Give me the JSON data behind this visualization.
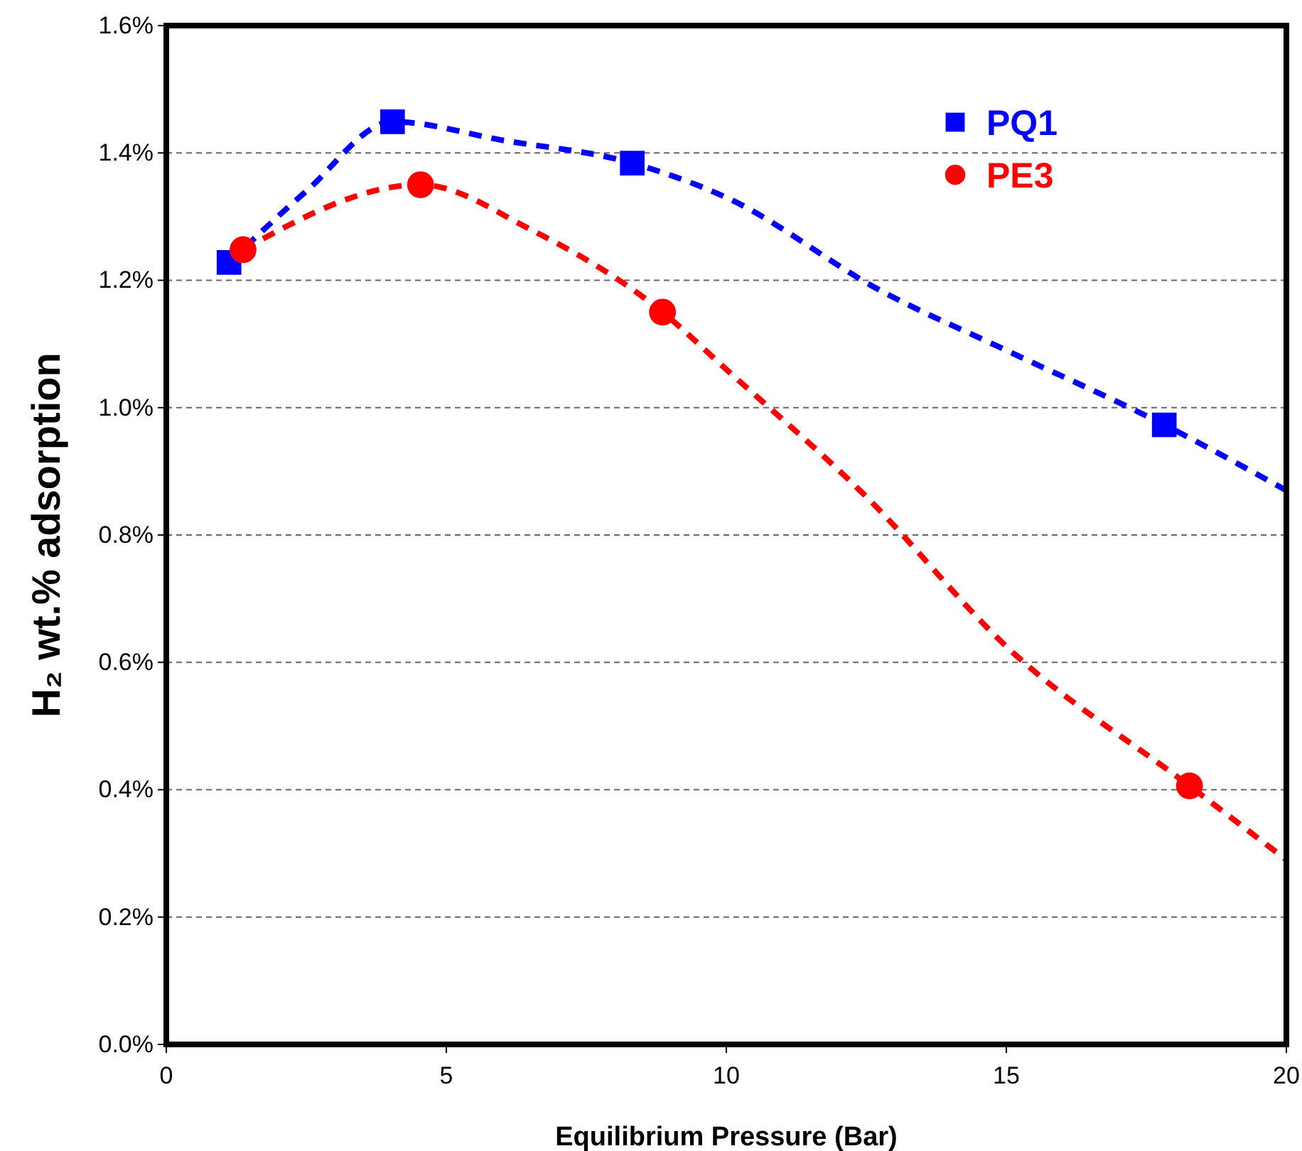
{
  "chart_data": {
    "type": "scatter",
    "xlabel": "Equilibrium Pressure (Bar)",
    "ylabel": "H₂ wt.% adsorption",
    "xlim": [
      0,
      20
    ],
    "xticks": [
      0,
      5,
      10,
      15,
      20
    ],
    "ylim": [
      0,
      1.6
    ],
    "yticks": [
      {
        "value": 0,
        "label": "0.0%"
      },
      {
        "value": 0.2,
        "label": "0.2%"
      },
      {
        "value": 0.4,
        "label": "0.4%"
      },
      {
        "value": 0.6,
        "label": "0.6%"
      },
      {
        "value": 0.8,
        "label": "0.8%"
      },
      {
        "value": 1.0,
        "label": "1.0%"
      },
      {
        "value": 1.2,
        "label": "1.2%"
      },
      {
        "value": 1.4,
        "label": "1.4%"
      },
      {
        "value": 1.6,
        "label": "1.6%"
      }
    ],
    "grid": "y",
    "legend": "top right",
    "series": [
      {
        "type": "line",
        "color": "#0000ff",
        "line_style": "dashed",
        "marker": "none",
        "x": [
          1.12,
          2.5,
          4.04,
          6,
          8.32,
          10,
          12.77,
          15,
          17.82,
          20
        ],
        "values": [
          1.228,
          1.34,
          1.449,
          1.42,
          1.384,
          1.33,
          1.183,
          1.09,
          0.973,
          0.87
        ]
      },
      {
        "type": "line",
        "color": "#ff0000",
        "line_style": "dashed",
        "marker": "none",
        "x": [
          1.37,
          4.54,
          6.5,
          8.86,
          10,
          12.5,
          15,
          18.27,
          20
        ],
        "values": [
          1.248,
          1.35,
          1.28,
          1.15,
          1.06,
          0.86,
          0.625,
          0.406,
          0.29
        ]
      },
      {
        "name": "PQ1",
        "color": "#0000ff",
        "marker": "square",
        "x": [
          1.12,
          4.04,
          8.32,
          17.82
        ],
        "values": [
          1.228,
          1.449,
          1.384,
          0.973
        ]
      },
      {
        "name": "PE3",
        "color": "#ff0000",
        "marker": "circle",
        "x": [
          1.37,
          4.54,
          8.86,
          18.27
        ],
        "values": [
          1.248,
          1.35,
          1.15,
          0.406
        ]
      }
    ]
  }
}
